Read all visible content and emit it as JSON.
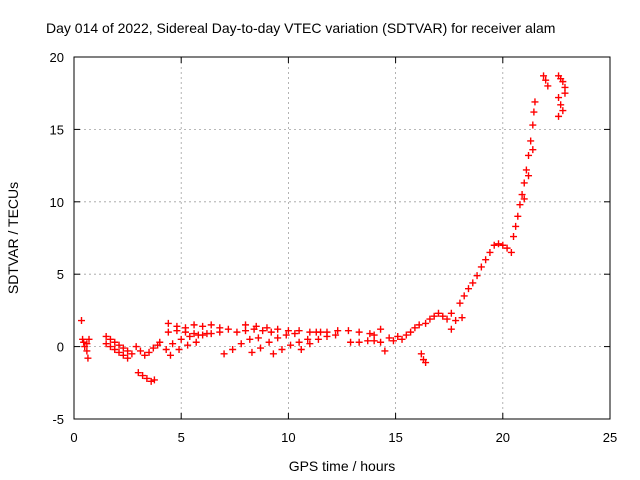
{
  "chart_data": {
    "type": "scatter",
    "title": "Day 014 of 2022, Sidereal Day-to-day VTEC variation (SDTVAR) for receiver alam",
    "xlabel": "GPS time / hours",
    "ylabel": "SDTVAR / TECUs",
    "xlim": [
      0,
      25
    ],
    "ylim": [
      -5,
      20
    ],
    "xticks": [
      0,
      5,
      10,
      15,
      20,
      25
    ],
    "yticks": [
      -5,
      0,
      5,
      10,
      15,
      20
    ],
    "x_tick_labels": [
      "0",
      "5",
      "10",
      "15",
      "20",
      "25"
    ],
    "y_tick_labels": [
      "-5",
      "0",
      "5",
      "10",
      "15",
      "20"
    ],
    "grid": true,
    "marker": "+",
    "color": "#ff0000",
    "series": [
      {
        "name": "early-left",
        "points": [
          [
            0.35,
            1.8
          ],
          [
            0.4,
            0.5
          ],
          [
            0.45,
            0.3
          ],
          [
            0.5,
            0.0
          ],
          [
            0.6,
            -0.3
          ],
          [
            0.65,
            -0.8
          ],
          [
            0.7,
            0.5
          ],
          [
            0.6,
            0.2
          ]
        ]
      },
      {
        "name": "arc-a",
        "points": [
          [
            1.5,
            0.7
          ],
          [
            1.7,
            0.5
          ],
          [
            1.9,
            0.3
          ],
          [
            2.1,
            0.1
          ],
          [
            2.3,
            -0.1
          ],
          [
            2.5,
            -0.3
          ],
          [
            2.7,
            -0.5
          ]
        ]
      },
      {
        "name": "arc-b",
        "points": [
          [
            1.5,
            0.2
          ],
          [
            1.7,
            0.0
          ],
          [
            1.9,
            -0.2
          ],
          [
            2.1,
            -0.4
          ],
          [
            2.3,
            -0.6
          ],
          [
            2.5,
            -0.8
          ]
        ]
      },
      {
        "name": "arc-c",
        "points": [
          [
            2.9,
            0.0
          ],
          [
            3.1,
            -0.3
          ],
          [
            3.3,
            -0.6
          ],
          [
            3.5,
            -0.4
          ],
          [
            3.7,
            -0.1
          ],
          [
            3.9,
            0.1
          ],
          [
            4.0,
            0.3
          ]
        ]
      },
      {
        "name": "arc-d",
        "points": [
          [
            3.0,
            -1.8
          ],
          [
            3.2,
            -2.0
          ],
          [
            3.4,
            -2.2
          ],
          [
            3.6,
            -2.4
          ],
          [
            3.75,
            -2.3
          ]
        ]
      },
      {
        "name": "arc-e",
        "points": [
          [
            4.4,
            1.6
          ],
          [
            4.8,
            1.4
          ],
          [
            5.2,
            1.3
          ],
          [
            5.6,
            1.5
          ],
          [
            6.0,
            1.4
          ],
          [
            6.4,
            1.5
          ],
          [
            6.8,
            1.3
          ],
          [
            7.2,
            1.2
          ]
        ]
      },
      {
        "name": "arc-f",
        "points": [
          [
            4.4,
            1.0
          ],
          [
            4.8,
            1.1
          ],
          [
            5.2,
            1.0
          ],
          [
            5.6,
            0.9
          ],
          [
            6.0,
            0.8
          ],
          [
            6.4,
            0.9
          ],
          [
            6.8,
            1.0
          ]
        ]
      },
      {
        "name": "arc-g",
        "points": [
          [
            4.3,
            -0.2
          ],
          [
            4.6,
            0.2
          ],
          [
            5.0,
            0.5
          ],
          [
            5.4,
            0.7
          ],
          [
            5.8,
            0.8
          ],
          [
            6.2,
            0.9
          ]
        ]
      },
      {
        "name": "arc-h",
        "points": [
          [
            4.5,
            -0.6
          ],
          [
            4.9,
            -0.2
          ],
          [
            5.3,
            0.1
          ],
          [
            5.7,
            0.3
          ]
        ]
      },
      {
        "name": "arc-i",
        "points": [
          [
            7.0,
            -0.5
          ],
          [
            7.4,
            -0.2
          ],
          [
            7.8,
            0.2
          ],
          [
            8.2,
            0.5
          ],
          [
            8.6,
            0.6
          ]
        ]
      },
      {
        "name": "arc-j",
        "points": [
          [
            8.0,
            1.5
          ],
          [
            8.5,
            1.4
          ],
          [
            9.0,
            1.3
          ],
          [
            9.5,
            1.2
          ],
          [
            10.0,
            1.1
          ],
          [
            10.5,
            1.1
          ],
          [
            11.0,
            1.0
          ],
          [
            11.5,
            1.0
          ]
        ]
      },
      {
        "name": "arc-k",
        "points": [
          [
            7.6,
            1.0
          ],
          [
            8.0,
            1.1
          ],
          [
            8.4,
            1.2
          ],
          [
            8.8,
            1.1
          ],
          [
            9.2,
            1.0
          ]
        ]
      },
      {
        "name": "arc-l",
        "points": [
          [
            8.3,
            -0.4
          ],
          [
            8.7,
            -0.1
          ],
          [
            9.1,
            0.3
          ],
          [
            9.5,
            0.6
          ],
          [
            9.9,
            0.8
          ],
          [
            10.3,
            0.9
          ]
        ]
      },
      {
        "name": "arc-m",
        "points": [
          [
            9.3,
            -0.5
          ],
          [
            9.7,
            -0.2
          ],
          [
            10.1,
            0.1
          ],
          [
            10.5,
            0.3
          ],
          [
            10.9,
            0.5
          ]
        ]
      },
      {
        "name": "arc-n",
        "points": [
          [
            10.6,
            -0.2
          ],
          [
            11.0,
            0.2
          ],
          [
            11.4,
            0.5
          ],
          [
            11.8,
            0.7
          ],
          [
            12.2,
            0.8
          ]
        ]
      },
      {
        "name": "arc-o",
        "points": [
          [
            11.3,
            1.0
          ],
          [
            11.8,
            1.0
          ],
          [
            12.3,
            1.1
          ],
          [
            12.8,
            1.1
          ],
          [
            13.3,
            1.0
          ],
          [
            13.8,
            0.9
          ],
          [
            14.0,
            0.8
          ]
        ]
      },
      {
        "name": "arc-p",
        "points": [
          [
            12.9,
            0.3
          ],
          [
            13.3,
            0.3
          ],
          [
            13.7,
            0.4
          ],
          [
            14.0,
            0.4
          ],
          [
            14.3,
            0.3
          ]
        ]
      },
      {
        "name": "cluster-15",
        "points": [
          [
            14.3,
            1.2
          ],
          [
            14.5,
            -0.3
          ],
          [
            14.7,
            0.6
          ],
          [
            14.9,
            0.4
          ],
          [
            15.1,
            0.7
          ],
          [
            15.3,
            0.5
          ],
          [
            15.5,
            0.8
          ],
          [
            15.7,
            1.0
          ],
          [
            15.9,
            1.3
          ],
          [
            16.1,
            1.5
          ],
          [
            16.2,
            -0.5
          ],
          [
            16.3,
            -0.9
          ],
          [
            16.4,
            -1.1
          ]
        ]
      },
      {
        "name": "cluster-17",
        "points": [
          [
            16.4,
            1.6
          ],
          [
            16.6,
            1.9
          ],
          [
            16.8,
            2.1
          ],
          [
            17.0,
            2.3
          ],
          [
            17.2,
            2.1
          ],
          [
            17.4,
            1.9
          ],
          [
            17.6,
            2.3
          ],
          [
            17.8,
            1.8
          ],
          [
            17.6,
            1.2
          ],
          [
            18.1,
            2.0
          ]
        ]
      },
      {
        "name": "rise-18",
        "points": [
          [
            18.0,
            3.0
          ],
          [
            18.2,
            3.5
          ],
          [
            18.4,
            4.0
          ],
          [
            18.6,
            4.4
          ],
          [
            18.8,
            4.9
          ],
          [
            19.0,
            5.5
          ],
          [
            19.2,
            6.0
          ],
          [
            19.4,
            6.5
          ],
          [
            19.6,
            7.0
          ],
          [
            19.8,
            7.1
          ],
          [
            20.0,
            7.0
          ],
          [
            20.2,
            6.8
          ],
          [
            20.4,
            6.5
          ]
        ]
      },
      {
        "name": "spike-21",
        "points": [
          [
            20.5,
            7.6
          ],
          [
            20.6,
            8.3
          ],
          [
            20.7,
            9.0
          ],
          [
            20.8,
            9.8
          ],
          [
            20.9,
            10.5
          ],
          [
            21.0,
            11.3
          ],
          [
            21.1,
            12.2
          ],
          [
            21.2,
            13.2
          ],
          [
            21.3,
            14.2
          ],
          [
            21.4,
            15.3
          ],
          [
            21.45,
            16.2
          ],
          [
            21.5,
            16.9
          ],
          [
            21.0,
            10.2
          ],
          [
            21.2,
            11.8
          ],
          [
            21.4,
            13.6
          ]
        ]
      },
      {
        "name": "late-22",
        "points": [
          [
            21.9,
            18.7
          ],
          [
            22.0,
            18.4
          ],
          [
            22.1,
            18.0
          ]
        ]
      },
      {
        "name": "late-23",
        "points": [
          [
            22.6,
            18.7
          ],
          [
            22.7,
            18.5
          ],
          [
            22.8,
            18.3
          ],
          [
            22.9,
            17.9
          ],
          [
            22.6,
            17.2
          ],
          [
            22.7,
            16.7
          ],
          [
            22.8,
            16.3
          ],
          [
            22.6,
            15.9
          ],
          [
            22.9,
            17.5
          ]
        ]
      }
    ]
  }
}
